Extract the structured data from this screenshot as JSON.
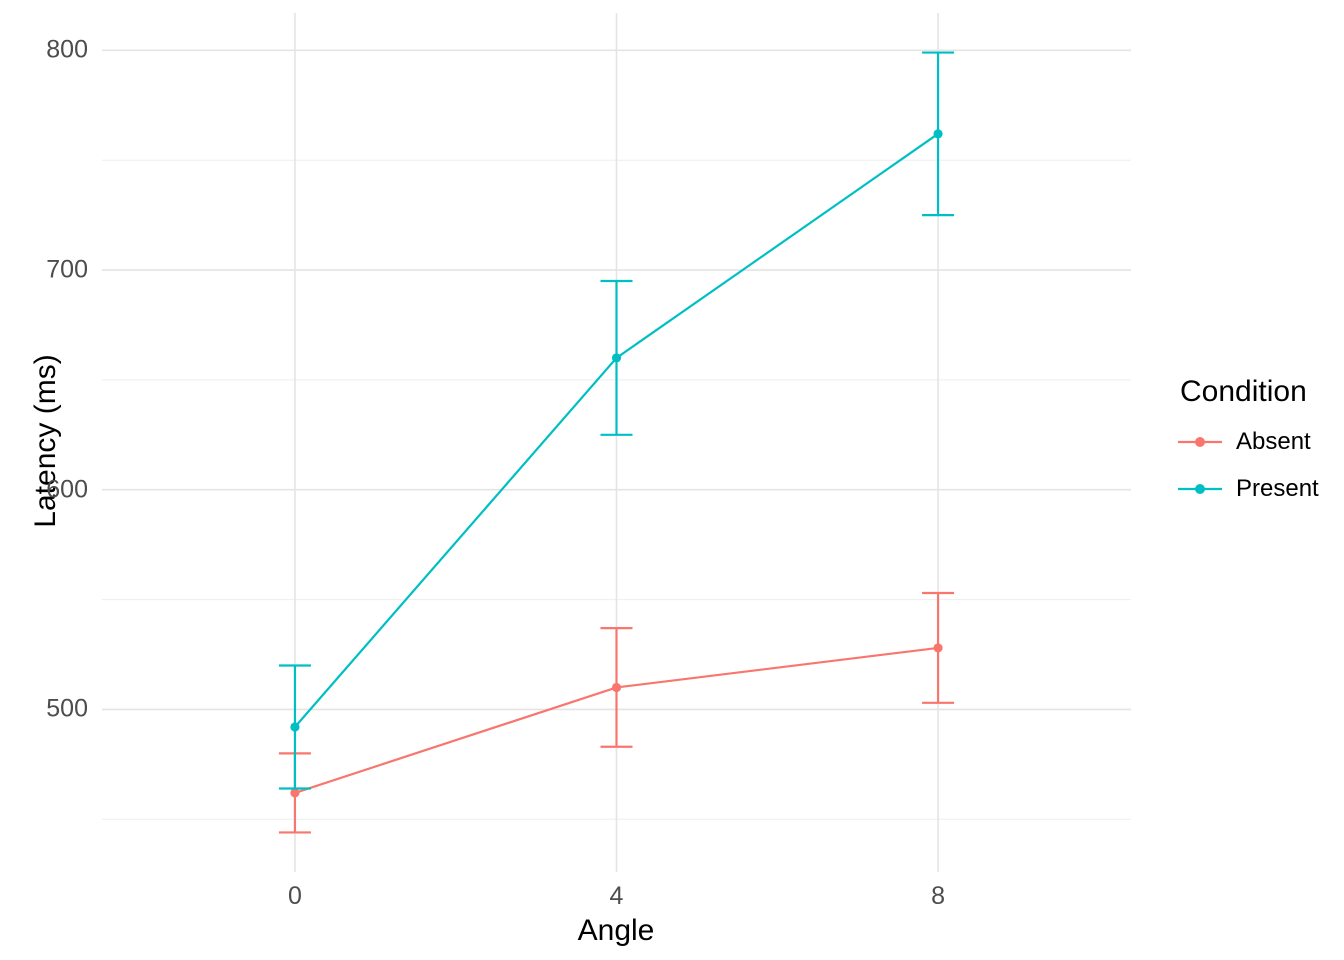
{
  "chart_data": {
    "type": "line",
    "x_type": "discrete",
    "categories": [
      "0",
      "4",
      "8"
    ],
    "xlabel": "Angle",
    "ylabel": "Latency (ms)",
    "y_ticks": [
      500,
      600,
      700,
      800
    ],
    "y_minor_ticks": [
      450,
      550,
      650,
      750
    ],
    "ylim": [
      426,
      817
    ],
    "grid": "major-and-minor-horizontal, major-vertical-at-categories",
    "legend": {
      "title": "Condition",
      "position": "right"
    },
    "series": [
      {
        "name": "Absent",
        "color": "#F8766D",
        "values": [
          462,
          510,
          528
        ],
        "ci_lower": [
          444,
          483,
          503
        ],
        "ci_upper": [
          480,
          537,
          553
        ]
      },
      {
        "name": "Present",
        "color": "#00BFC4",
        "values": [
          492,
          660,
          762
        ],
        "ci_lower": [
          464,
          625,
          725
        ],
        "ci_upper": [
          520,
          695,
          799
        ]
      }
    ],
    "error_bars": "T-caps",
    "marker": "filled-circle"
  },
  "style": {
    "background": "#FFFFFF",
    "grid_major_color": "#E4E4E4",
    "grid_minor_color": "#EEEEEE",
    "tick_label_color": "#4D4D4D",
    "axis_title_color": "#000000"
  }
}
